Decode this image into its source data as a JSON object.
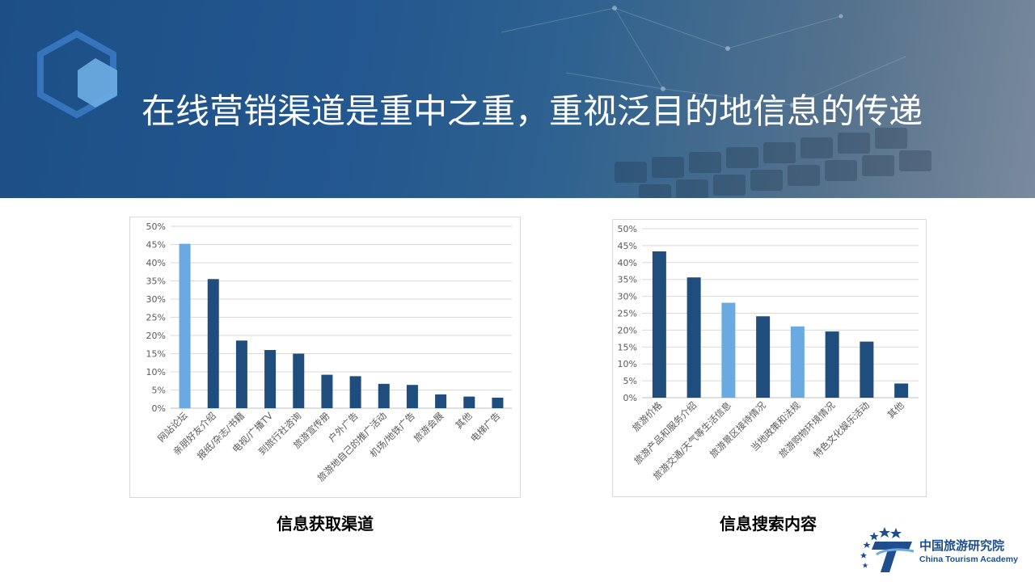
{
  "slide": {
    "title": "在线营销渠道是重中之重，重视泛目的地信息的传递"
  },
  "colors": {
    "dark_bar": "#1f4e7e",
    "light_bar": "#6aaae0",
    "banner": "#1d4f86"
  },
  "chart_data": [
    {
      "type": "bar",
      "title": "信息获取渠道",
      "categories": [
        "网站论坛",
        "亲朋好友介绍",
        "报纸/杂志/书籍",
        "电视/广播TV",
        "到旅行社咨询",
        "旅游宣传册",
        "户外广告",
        "旅游地自己的推广活动",
        "机场/地铁广告",
        "旅游会展",
        "其他",
        "电梯广告"
      ],
      "values": [
        45.2,
        35.5,
        18.6,
        16.0,
        15.0,
        9.2,
        8.8,
        6.7,
        6.4,
        3.8,
        3.2,
        2.9
      ],
      "highlight": [
        true,
        false,
        false,
        false,
        false,
        false,
        false,
        false,
        false,
        false,
        false,
        false
      ],
      "ylim": [
        0,
        50
      ],
      "yticks": [
        "0%",
        "5%",
        "10%",
        "15%",
        "20%",
        "25%",
        "30%",
        "35%",
        "40%",
        "45%",
        "50%"
      ],
      "grid": true,
      "xlabel": "",
      "ylabel": ""
    },
    {
      "type": "bar",
      "title": "信息搜索内容",
      "categories": [
        "旅游价格",
        "旅游产品和服务介绍",
        "旅游交通/天气等生活信息",
        "旅游景区接待情况",
        "当地政策和法规",
        "旅游购物环境情况",
        "特色文化娱乐活动",
        "其他"
      ],
      "values": [
        43.3,
        35.6,
        28.1,
        24.1,
        21.1,
        19.6,
        16.6,
        4.2
      ],
      "highlight": [
        false,
        false,
        true,
        false,
        true,
        false,
        false,
        false
      ],
      "ylim": [
        0,
        50
      ],
      "yticks": [
        "0%",
        "5%",
        "10%",
        "15%",
        "20%",
        "25%",
        "30%",
        "35%",
        "40%",
        "45%",
        "50%"
      ],
      "grid": true,
      "xlabel": "",
      "ylabel": ""
    }
  ],
  "logo": {
    "cn": "中国旅游研究院",
    "en": "China Tourism Academy"
  }
}
